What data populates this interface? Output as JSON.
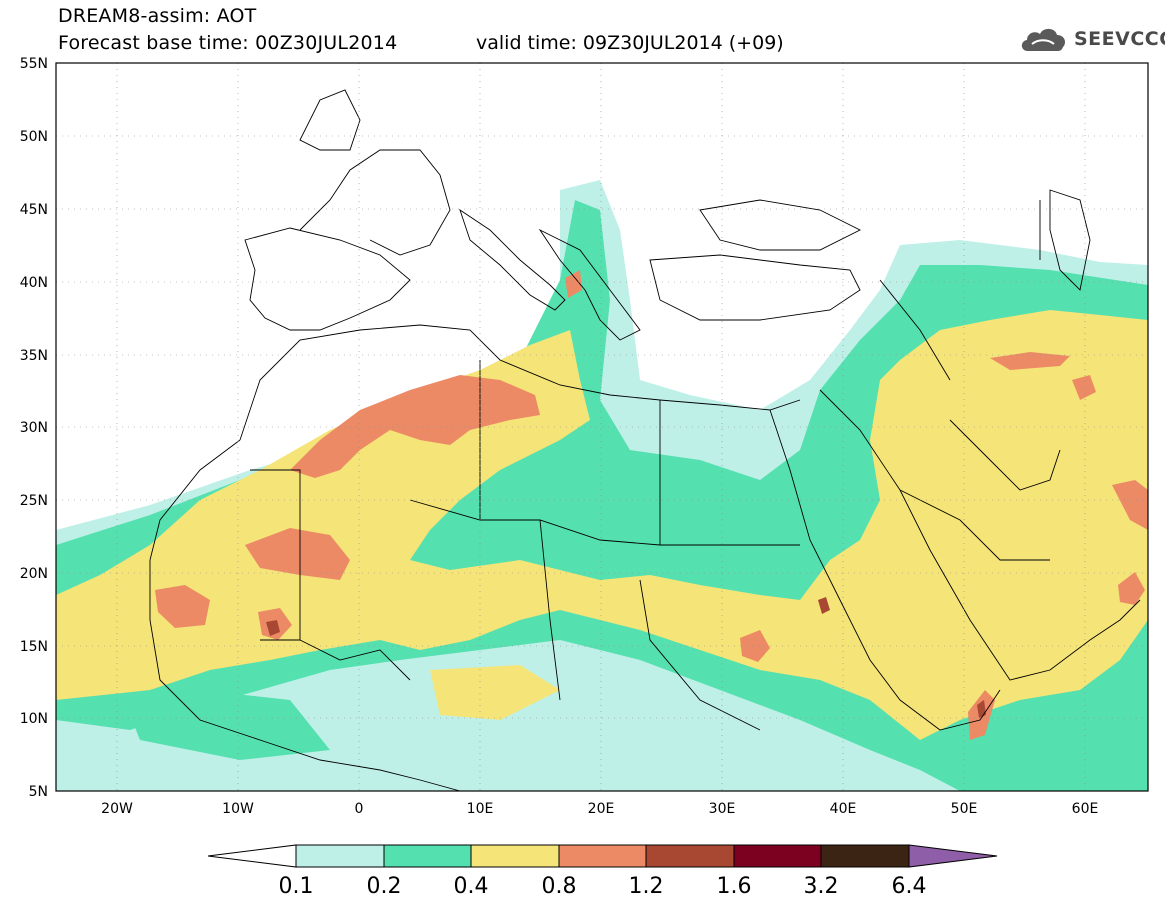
{
  "header": {
    "title": "DREAM8-assim: AOT",
    "base_time": "Forecast base time: 00Z30JUL2014",
    "valid_time": "valid time: 09Z30JUL2014 (+09)"
  },
  "logo": {
    "icon": "cloud-icon",
    "text": "SEEVCCC"
  },
  "map": {
    "lon_range": [
      -25,
      65
    ],
    "lat_range": [
      5,
      55
    ],
    "lat_labels": [
      "55N",
      "50N",
      "45N",
      "40N",
      "35N",
      "30N",
      "25N",
      "20N",
      "15N",
      "10N",
      "5N"
    ],
    "lon_labels": [
      "20W",
      "10W",
      "0",
      "10E",
      "20E",
      "30E",
      "40E",
      "50E",
      "60E"
    ]
  },
  "colorbar": {
    "levels": [
      "0.1",
      "0.2",
      "0.4",
      "0.8",
      "1.2",
      "1.6",
      "3.2",
      "6.4"
    ],
    "colors": [
      "#ffffff",
      "#bff0e8",
      "#55e0b0",
      "#f5e477",
      "#ec8a66",
      "#a84832",
      "#7c0020",
      "#3b2414",
      "#8e5ea8"
    ]
  },
  "colors": {
    "c01": "#bff0e8",
    "c02": "#55e0b0",
    "c04": "#f5e477",
    "c08": "#ec8a66",
    "c12": "#a84832"
  }
}
